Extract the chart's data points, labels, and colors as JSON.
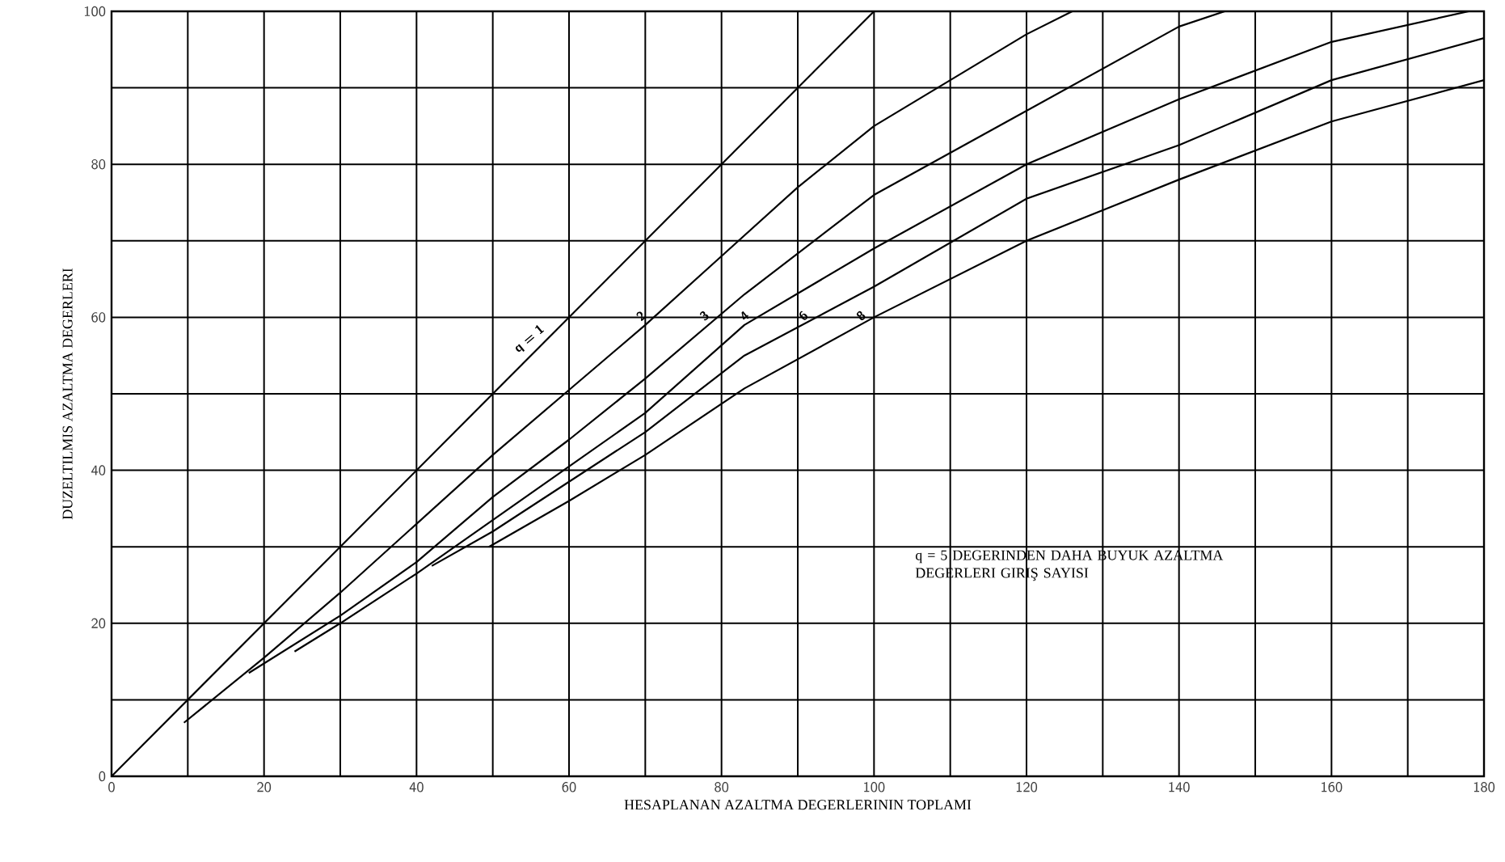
{
  "chart_data": {
    "type": "line",
    "xlabel": "HESAPLANAN AZALTMA DEGERLERININ TOPLAMI",
    "ylabel": "DUZELTILMIS AZALTMA DEGERLERI",
    "annotations": [
      "q = 5 DEGERINDEN DAHA BUYUK AZALTMA DEGERLERI GIRIŞ SAYISI"
    ],
    "series": [
      {
        "name": "q = 1",
        "color": "#000000",
        "x": [
          0,
          100
        ],
        "values": [
          0,
          100
        ]
      },
      {
        "name": "2",
        "color": "#000000",
        "x": [
          9.5,
          20,
          30,
          40,
          50,
          60,
          70,
          80,
          90,
          100,
          110,
          120,
          126
        ],
        "values": [
          7,
          15.5,
          24,
          33,
          42,
          50.5,
          59,
          68,
          77,
          85,
          91,
          97,
          100
        ]
      },
      {
        "name": "3",
        "color": "#000000",
        "x": [
          18,
          30,
          40,
          50,
          60,
          70,
          83,
          100,
          120,
          140,
          146
        ],
        "values": [
          13.5,
          21,
          28,
          36.5,
          44,
          52,
          63,
          76,
          87,
          98,
          100
        ]
      },
      {
        "name": "4",
        "color": "#000000",
        "x": [
          24,
          30,
          40,
          50,
          60,
          70,
          83,
          100,
          120,
          140,
          160,
          178
        ],
        "values": [
          16.3,
          20,
          26.5,
          33.5,
          40.5,
          47.5,
          59,
          69,
          80,
          88.5,
          96,
          100
        ]
      },
      {
        "name": "6",
        "color": "#000000",
        "x": [
          42,
          50,
          60,
          70,
          83,
          100,
          120,
          140,
          160,
          180
        ],
        "values": [
          27.5,
          32,
          38.5,
          45,
          55,
          64,
          75.5,
          82.5,
          91,
          96.5
        ]
      },
      {
        "name": "8",
        "color": "#000000",
        "x": [
          49.5,
          60,
          70,
          83,
          100,
          120,
          140,
          160,
          180
        ],
        "values": [
          30,
          36,
          42,
          50.7,
          60,
          70,
          78,
          85.6,
          91
        ]
      }
    ],
    "xlim": [
      0,
      180
    ],
    "ylim": [
      0,
      100
    ],
    "xticks": [
      0,
      {
        "value": 10,
        "label": null
      },
      20,
      {
        "value": 30,
        "label": null
      },
      40,
      {
        "value": 50,
        "label": null
      },
      60,
      {
        "value": 70,
        "label": null
      },
      80,
      {
        "value": 90,
        "label": null
      },
      100,
      {
        "value": 110,
        "label": null
      },
      120,
      {
        "value": 130,
        "label": null
      },
      140,
      {
        "value": 150,
        "label": null
      },
      160,
      {
        "value": 170,
        "label": null
      },
      180
    ],
    "yticks": [
      0,
      {
        "value": 10,
        "label": null
      },
      20,
      {
        "value": 30,
        "label": null
      },
      40,
      {
        "value": 50,
        "label": null
      },
      60,
      {
        "value": 70,
        "label": null
      },
      80,
      {
        "value": 90,
        "label": null
      },
      100
    ],
    "grid": true,
    "legend": false,
    "marker": "none",
    "line_style": "solid"
  }
}
